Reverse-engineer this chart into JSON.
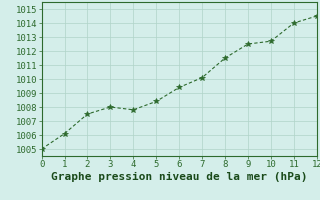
{
  "x": [
    0,
    1,
    2,
    3,
    4,
    5,
    6,
    7,
    8,
    9,
    10,
    11,
    12
  ],
  "y": [
    1005.0,
    1006.1,
    1007.5,
    1008.0,
    1007.8,
    1008.4,
    1009.4,
    1010.1,
    1011.5,
    1012.5,
    1012.7,
    1014.0,
    1014.5
  ],
  "xlim": [
    0,
    12
  ],
  "ylim": [
    1004.5,
    1015.5
  ],
  "xticks": [
    0,
    1,
    2,
    3,
    4,
    5,
    6,
    7,
    8,
    9,
    10,
    11,
    12
  ],
  "yticks": [
    1005,
    1006,
    1007,
    1008,
    1009,
    1010,
    1011,
    1012,
    1013,
    1014,
    1015
  ],
  "xlabel": "Graphe pression niveau de la mer (hPa)",
  "line_color": "#2d6a2d",
  "marker": "*",
  "marker_size": 4,
  "bg_color": "#d4eeea",
  "grid_color": "#b0d4c8",
  "tick_fontsize": 6.5,
  "xlabel_fontsize": 8,
  "xlabel_color": "#1a4a1a",
  "xlabel_fontweight": "bold",
  "spine_color": "#2d6a2d"
}
